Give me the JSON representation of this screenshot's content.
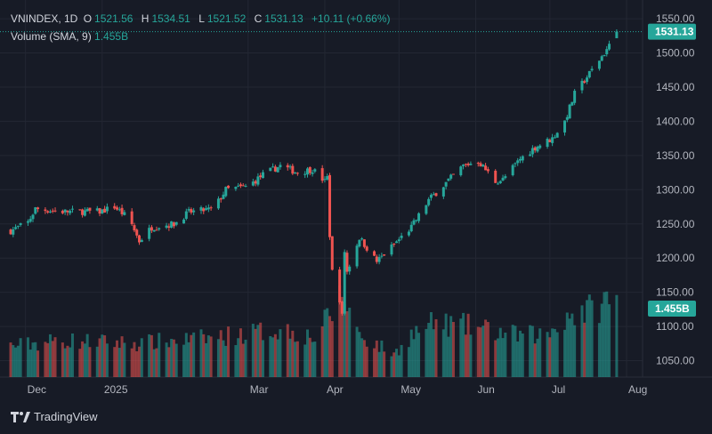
{
  "header": {
    "symbol": "VNINDEX, 1D",
    "o_label": "O",
    "o_value": "1521.56",
    "h_label": "H",
    "h_value": "1534.51",
    "l_label": "L",
    "l_value": "1521.52",
    "c_label": "C",
    "c_value": "1531.13",
    "change": "+10.11 (+0.66%)",
    "volume_label": "Volume (SMA, 9)",
    "volume_value": "1.455B"
  },
  "brand": {
    "name": "TradingView",
    "icon": "tradingview-logo-icon"
  },
  "colors": {
    "up": "#26a69a",
    "down": "#ef5350",
    "background": "#171b26",
    "grid": "#232733"
  },
  "chart_data": {
    "type": "candlestick",
    "y_axis": {
      "ticks": [
        1050,
        1100,
        1150,
        1200,
        1250,
        1300,
        1350,
        1400,
        1450,
        1500,
        1550
      ],
      "tick_labels": [
        "1050.00",
        "1100.00",
        "1150.00",
        "1200.00",
        "1250.00",
        "1300.00",
        "1350.00",
        "1400.00",
        "1450.00",
        "1500.00",
        "1550.00"
      ],
      "range": [
        1026,
        1567
      ]
    },
    "x_axis": {
      "tick_labels": [
        "Dec",
        "2025",
        "Mar",
        "Apr",
        "May",
        "Jun",
        "Jul",
        "Aug"
      ],
      "tick_dates": [
        "2024-12-01",
        "2025-01-01",
        "2025-03-01",
        "2025-04-01",
        "2025-05-01",
        "2025-06-01",
        "2025-07-01",
        "2025-08-01"
      ]
    },
    "last_price_label": "1531.13",
    "last_volume_label": "1.455B",
    "grid": true,
    "price_path": [
      [
        "2024-11-25",
        1240
      ],
      [
        "2024-12-02",
        1252
      ],
      [
        "2024-12-05",
        1272
      ],
      [
        "2024-12-15",
        1268
      ],
      [
        "2024-12-31",
        1268
      ],
      [
        "2025-01-06",
        1275
      ],
      [
        "2025-01-12",
        1257
      ],
      [
        "2025-01-16",
        1225
      ],
      [
        "2025-01-21",
        1245
      ],
      [
        "2025-01-30",
        1250
      ],
      [
        "2025-02-05",
        1267
      ],
      [
        "2025-02-15",
        1272
      ],
      [
        "2025-02-20",
        1300
      ],
      [
        "2025-03-01",
        1305
      ],
      [
        "2025-03-07",
        1322
      ],
      [
        "2025-03-14",
        1335
      ],
      [
        "2025-03-21",
        1325
      ],
      [
        "2025-03-27",
        1330
      ],
      [
        "2025-04-01",
        1312
      ],
      [
        "2025-04-02",
        1318
      ],
      [
        "2025-04-03",
        1234
      ],
      [
        "2025-04-04",
        1180
      ],
      [
        "2025-04-07",
        1140
      ],
      [
        "2025-04-08",
        1115
      ],
      [
        "2025-04-09",
        1210
      ],
      [
        "2025-04-10",
        1180
      ],
      [
        "2025-04-15",
        1230
      ],
      [
        "2025-04-22",
        1195
      ],
      [
        "2025-04-29",
        1220
      ],
      [
        "2025-05-06",
        1245
      ],
      [
        "2025-05-13",
        1285
      ],
      [
        "2025-05-20",
        1310
      ],
      [
        "2025-05-27",
        1335
      ],
      [
        "2025-06-02",
        1342
      ],
      [
        "2025-06-09",
        1312
      ],
      [
        "2025-06-12",
        1315
      ],
      [
        "2025-06-19",
        1345
      ],
      [
        "2025-06-25",
        1362
      ],
      [
        "2025-07-02",
        1375
      ],
      [
        "2025-07-07",
        1400
      ],
      [
        "2025-07-11",
        1440
      ],
      [
        "2025-07-17",
        1470
      ],
      [
        "2025-07-22",
        1495
      ],
      [
        "2025-07-25",
        1510
      ],
      [
        "2025-07-28",
        1531
      ]
    ],
    "volume_bn_path": [
      [
        "2024-11-25",
        0.55
      ],
      [
        "2024-12-15",
        0.65
      ],
      [
        "2025-01-15",
        0.6
      ],
      [
        "2025-02-15",
        0.7
      ],
      [
        "2025-03-15",
        0.85
      ],
      [
        "2025-03-28",
        0.7
      ],
      [
        "2025-04-03",
        1.1
      ],
      [
        "2025-04-08",
        1.45
      ],
      [
        "2025-04-10",
        1.3
      ],
      [
        "2025-04-15",
        0.75
      ],
      [
        "2025-04-29",
        0.4
      ],
      [
        "2025-05-06",
        0.75
      ],
      [
        "2025-05-15",
        0.95
      ],
      [
        "2025-05-30",
        0.9
      ],
      [
        "2025-06-15",
        0.75
      ],
      [
        "2025-06-30",
        0.75
      ],
      [
        "2025-07-08",
        1.1
      ],
      [
        "2025-07-18",
        1.2
      ],
      [
        "2025-07-28",
        1.455
      ]
    ],
    "volume_axis_max_bn": 3.5
  }
}
